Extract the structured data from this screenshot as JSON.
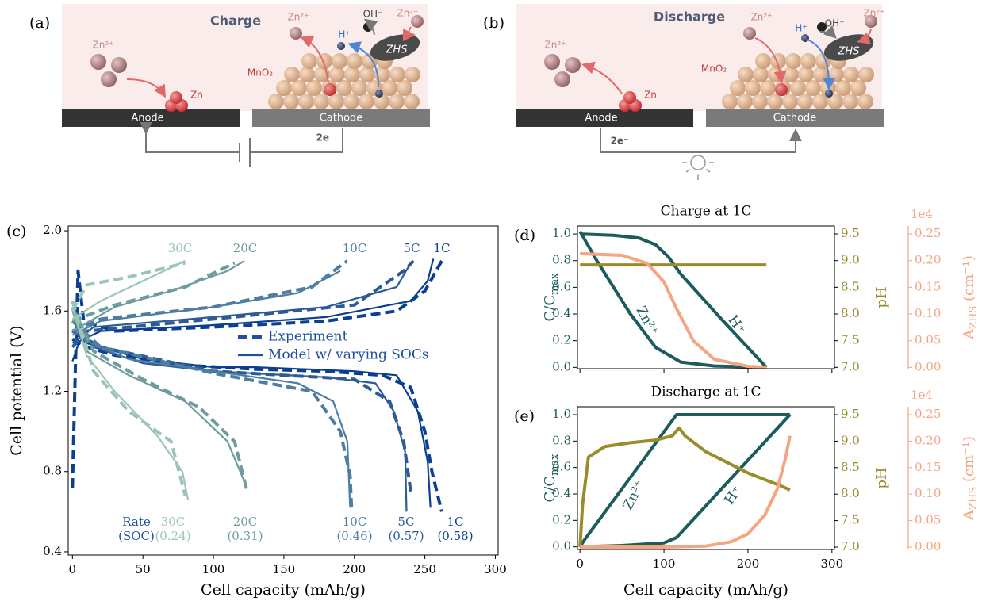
{
  "diagrams": [
    {
      "label": "(a)",
      "title": "Charge",
      "anode": "Anode",
      "cathode": "Cathode",
      "electrons": "2e⁻",
      "species": [
        "Zn²⁺",
        "Zn",
        "MnO₂",
        "Zn²⁺",
        "H⁺",
        "OH⁻",
        "Zn²⁺",
        "ZHS"
      ]
    },
    {
      "label": "(b)",
      "title": "Discharge",
      "anode": "Anode",
      "cathode": "Cathode",
      "electrons": "2e⁻",
      "species": [
        "Zn²⁺",
        "Zn",
        "MnO₂",
        "Zn²⁺",
        "H⁺",
        "OH⁻",
        "Zn²⁺",
        "ZHS"
      ]
    }
  ],
  "chart_data": [
    {
      "type": "line",
      "label": "(c)",
      "xlabel": "Cell capacity (mAh/g)",
      "ylabel": "Cell potential (V)",
      "xlim": [
        -3,
        302
      ],
      "ylim": [
        0.384,
        2.024
      ],
      "xticks": [
        0,
        50,
        100,
        150,
        200,
        250,
        300
      ],
      "yticks": [
        0.4,
        0.8,
        1.2,
        1.6,
        {
          "value": 2,
          "label": "2.0"
        }
      ],
      "legend": [
        {
          "name": "Experiment",
          "style": "dashed"
        },
        {
          "name": "Model w/ varying SOCs",
          "style": "solid"
        }
      ],
      "legend_color": "#1f4f9f",
      "rate_header": "Rate",
      "soc_header": "(SOC)",
      "series": [
        {
          "rate": "1C",
          "soc": "(0.58)",
          "color": "#0b3f91",
          "curves": [
            {
              "style": "dashed",
              "x": [
                0,
                2,
                4,
                8,
                30,
                100,
                180,
                230,
                250,
                262
              ],
              "y": [
                0.72,
                1.3,
                1.8,
                1.55,
                1.5,
                1.52,
                1.55,
                1.6,
                1.7,
                1.85
              ]
            },
            {
              "style": "solid",
              "x": [
                0,
                5,
                20,
                100,
                180,
                240,
                252,
                256
              ],
              "y": [
                1.35,
                1.45,
                1.5,
                1.53,
                1.57,
                1.65,
                1.75,
                1.86
              ]
            },
            {
              "style": "dashed",
              "x": [
                0,
                10,
                30,
                80,
                130,
                180,
                220,
                240,
                250,
                255,
                262
              ],
              "y": [
                1.46,
                1.42,
                1.38,
                1.33,
                1.31,
                1.3,
                1.28,
                1.22,
                1.0,
                0.8,
                0.6
              ]
            },
            {
              "style": "solid",
              "x": [
                0,
                10,
                50,
                100,
                130,
                200,
                230,
                245,
                252,
                254
              ],
              "y": [
                1.5,
                1.44,
                1.36,
                1.32,
                1.32,
                1.3,
                1.28,
                1.1,
                0.85,
                0.62
              ]
            }
          ]
        },
        {
          "rate": "5C",
          "soc": "(0.57)",
          "color": "#2d5b96",
          "curves": [
            {
              "style": "dashed",
              "x": [
                0,
                10,
                100,
                200,
                235,
                242
              ],
              "y": [
                1.42,
                1.5,
                1.56,
                1.63,
                1.8,
                1.85
              ]
            },
            {
              "style": "solid",
              "x": [
                0,
                15,
                100,
                180,
                230,
                240
              ],
              "y": [
                1.44,
                1.52,
                1.57,
                1.62,
                1.72,
                1.84
              ]
            },
            {
              "style": "dashed",
              "x": [
                0,
                20,
                100,
                200,
                225,
                235,
                240
              ],
              "y": [
                1.5,
                1.42,
                1.3,
                1.26,
                1.15,
                0.95,
                0.7
              ]
            },
            {
              "style": "solid",
              "x": [
                0,
                15,
                50,
                100,
                180,
                215,
                228,
                236,
                237
              ],
              "y": [
                1.55,
                1.42,
                1.34,
                1.3,
                1.27,
                1.24,
                1.1,
                0.9,
                0.6
              ]
            }
          ]
        },
        {
          "rate": "10C",
          "soc": "(0.46)",
          "color": "#4d7ea2",
          "curves": [
            {
              "style": "dashed",
              "x": [
                0,
                20,
                100,
                170,
                195
              ],
              "y": [
                1.5,
                1.56,
                1.62,
                1.72,
                1.85
              ]
            },
            {
              "style": "solid",
              "x": [
                0,
                20,
                100,
                160,
                190
              ],
              "y": [
                1.48,
                1.55,
                1.62,
                1.69,
                1.8
              ]
            },
            {
              "style": "dashed",
              "x": [
                0,
                20,
                100,
                170,
                190,
                197,
                198
              ],
              "y": [
                1.55,
                1.42,
                1.29,
                1.2,
                1.0,
                0.78,
                0.62
              ]
            },
            {
              "style": "solid",
              "x": [
                0,
                10,
                40,
                100,
                160,
                185,
                195,
                197
              ],
              "y": [
                1.6,
                1.45,
                1.36,
                1.3,
                1.24,
                1.15,
                0.95,
                0.62
              ]
            }
          ]
        },
        {
          "rate": "20C",
          "soc": "(0.31)",
          "color": "#6e9b9e",
          "curves": [
            {
              "style": "dashed",
              "x": [
                0,
                30,
                80,
                115
              ],
              "y": [
                1.55,
                1.63,
                1.72,
                1.84
              ]
            },
            {
              "style": "solid",
              "x": [
                0,
                30,
                70,
                110,
                122
              ],
              "y": [
                1.5,
                1.62,
                1.7,
                1.8,
                1.85
              ]
            },
            {
              "style": "dashed",
              "x": [
                0,
                15,
                50,
                90,
                115,
                124
              ],
              "y": [
                1.62,
                1.4,
                1.26,
                1.12,
                0.95,
                0.7
              ]
            },
            {
              "style": "solid",
              "x": [
                0,
                10,
                40,
                80,
                110,
                122
              ],
              "y": [
                1.6,
                1.4,
                1.28,
                1.15,
                0.95,
                0.75
              ]
            }
          ]
        },
        {
          "rate": "30C",
          "soc": "(0.24)",
          "color": "#9cc5b3",
          "curves": [
            {
              "style": "dashed",
              "x": [
                0,
                10,
                40,
                80
              ],
              "y": [
                1.6,
                1.73,
                1.77,
                1.84
              ]
            },
            {
              "style": "solid",
              "x": [
                0,
                20,
                50,
                80
              ],
              "y": [
                1.56,
                1.65,
                1.75,
                1.85
              ]
            },
            {
              "style": "dashed",
              "x": [
                0,
                15,
                40,
                70,
                80
              ],
              "y": [
                1.65,
                1.3,
                1.1,
                0.95,
                0.68
              ]
            },
            {
              "style": "solid",
              "x": [
                0,
                10,
                30,
                60,
                78,
                82
              ],
              "y": [
                1.62,
                1.38,
                1.2,
                0.98,
                0.8,
                0.66
              ]
            }
          ]
        }
      ]
    },
    {
      "type": "line",
      "label": "(d)",
      "title": "Charge at 1C",
      "ylabel": {
        "base": "C/C",
        "sub": "max"
      },
      "y2label": "pH",
      "y3label": {
        "base": "A",
        "sub": "ZHS",
        "unit": " (cm⁻¹)"
      },
      "y3_offset": "1e4",
      "xlim": [
        -3,
        303
      ],
      "ylim": [
        -0.01,
        1.06
      ],
      "y2lim": [
        6.975,
        9.649
      ],
      "y3lim": [
        -0.0025,
        0.2649
      ],
      "yticks": [
        {
          "value": 0,
          "label": "0.0"
        },
        0.2,
        0.4,
        0.6,
        0.8,
        {
          "value": 1,
          "label": "1.0"
        }
      ],
      "y2ticks": [
        {
          "value": 7,
          "label": "7.0"
        },
        7.5,
        {
          "value": 8,
          "label": "8.0"
        },
        8.5,
        {
          "value": 9,
          "label": "9.0"
        },
        9.5
      ],
      "y3ticks": [
        {
          "value": 0,
          "label": "0.00"
        },
        0.05,
        {
          "value": 0.1,
          "label": "0.10"
        },
        0.15,
        {
          "value": 0.2,
          "label": "0.20"
        },
        0.25
      ],
      "series": [
        {
          "name": "Zn²⁺",
          "color": "#1d5c5c",
          "x": [
            0,
            20,
            60,
            90,
            120,
            160,
            222
          ],
          "values": [
            1.02,
            0.8,
            0.4,
            0.15,
            0.04,
            0.01,
            0.0
          ]
        },
        {
          "name": "H⁺",
          "color": "#1d5c5c",
          "x": [
            0,
            40,
            70,
            90,
            105,
            120,
            170,
            222
          ],
          "values": [
            1.0,
            0.99,
            0.97,
            0.92,
            0.83,
            0.7,
            0.35,
            0.0
          ]
        },
        {
          "axis": "y2",
          "color": "#9b8c2b",
          "x": [
            0,
            222
          ],
          "values": [
            8.92,
            8.92
          ]
        },
        {
          "axis": "y3",
          "color": "#f4a582",
          "x": [
            0,
            50,
            80,
            100,
            115,
            135,
            160,
            200,
            222
          ],
          "values": [
            0.213,
            0.21,
            0.195,
            0.16,
            0.11,
            0.05,
            0.015,
            0.002,
            0.0
          ]
        }
      ]
    },
    {
      "type": "line",
      "label": "(e)",
      "title": "Discharge at 1C",
      "xlabel": "Cell capacity (mAh/g)",
      "ylabel": {
        "base": "C/C",
        "sub": "max"
      },
      "y2label": "pH",
      "y3label": {
        "base": "A",
        "sub": "ZHS",
        "unit": " (cm⁻¹)"
      },
      "y3_offset": "1e4",
      "xlim": [
        -3,
        303
      ],
      "ylim": [
        -0.02,
        1.06
      ],
      "y2lim": [
        6.955,
        9.65
      ],
      "y3lim": [
        -0.0045,
        0.265
      ],
      "xticks": [
        0,
        100,
        200,
        300
      ],
      "yticks": [
        {
          "value": 0,
          "label": "0.0"
        },
        0.2,
        0.4,
        0.6,
        0.8,
        {
          "value": 1,
          "label": "1.0"
        }
      ],
      "y2ticks": [
        {
          "value": 7,
          "label": "7.0"
        },
        7.5,
        {
          "value": 8,
          "label": "8.0"
        },
        8.5,
        {
          "value": 9,
          "label": "9.0"
        },
        9.5
      ],
      "y3ticks": [
        {
          "value": 0,
          "label": "0.00"
        },
        0.05,
        {
          "value": 0.1,
          "label": "0.10"
        },
        0.15,
        {
          "value": 0.2,
          "label": "0.20"
        },
        0.25
      ],
      "series": [
        {
          "name": "Zn²⁺",
          "color": "#1d5c5c",
          "x": [
            0,
            5,
            115,
            250
          ],
          "values": [
            0.0,
            0.05,
            1.0,
            1.0
          ]
        },
        {
          "name": "H⁺",
          "color": "#1d5c5c",
          "x": [
            0,
            50,
            100,
            115,
            250
          ],
          "values": [
            0.0,
            0.01,
            0.03,
            0.07,
            1.0
          ]
        },
        {
          "axis": "y2",
          "color": "#9b8c2b",
          "x": [
            0,
            3,
            10,
            30,
            60,
            90,
            110,
            118,
            125,
            150,
            200,
            240,
            250
          ],
          "values": [
            7.0,
            7.8,
            8.7,
            8.9,
            8.97,
            9.02,
            9.1,
            9.25,
            9.1,
            8.8,
            8.4,
            8.15,
            8.08
          ]
        },
        {
          "axis": "y3",
          "color": "#f4a582",
          "x": [
            0,
            100,
            150,
            180,
            200,
            220,
            235,
            245,
            250
          ],
          "values": [
            0.0,
            0.0,
            0.002,
            0.01,
            0.025,
            0.06,
            0.11,
            0.17,
            0.21
          ]
        }
      ]
    }
  ]
}
